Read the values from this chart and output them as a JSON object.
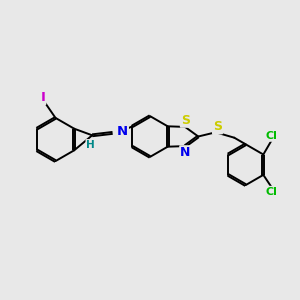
{
  "bg_color": "#e8e8e8",
  "bond_color": "#000000",
  "bond_width": 1.4,
  "dbo": 0.035,
  "atom_colors": {
    "S": "#cccc00",
    "N": "#0000ee",
    "I": "#cc00cc",
    "Cl": "#00bb00",
    "H": "#008888"
  },
  "font_size": 8.5,
  "fig_size": [
    3.0,
    3.0
  ],
  "dpi": 100
}
